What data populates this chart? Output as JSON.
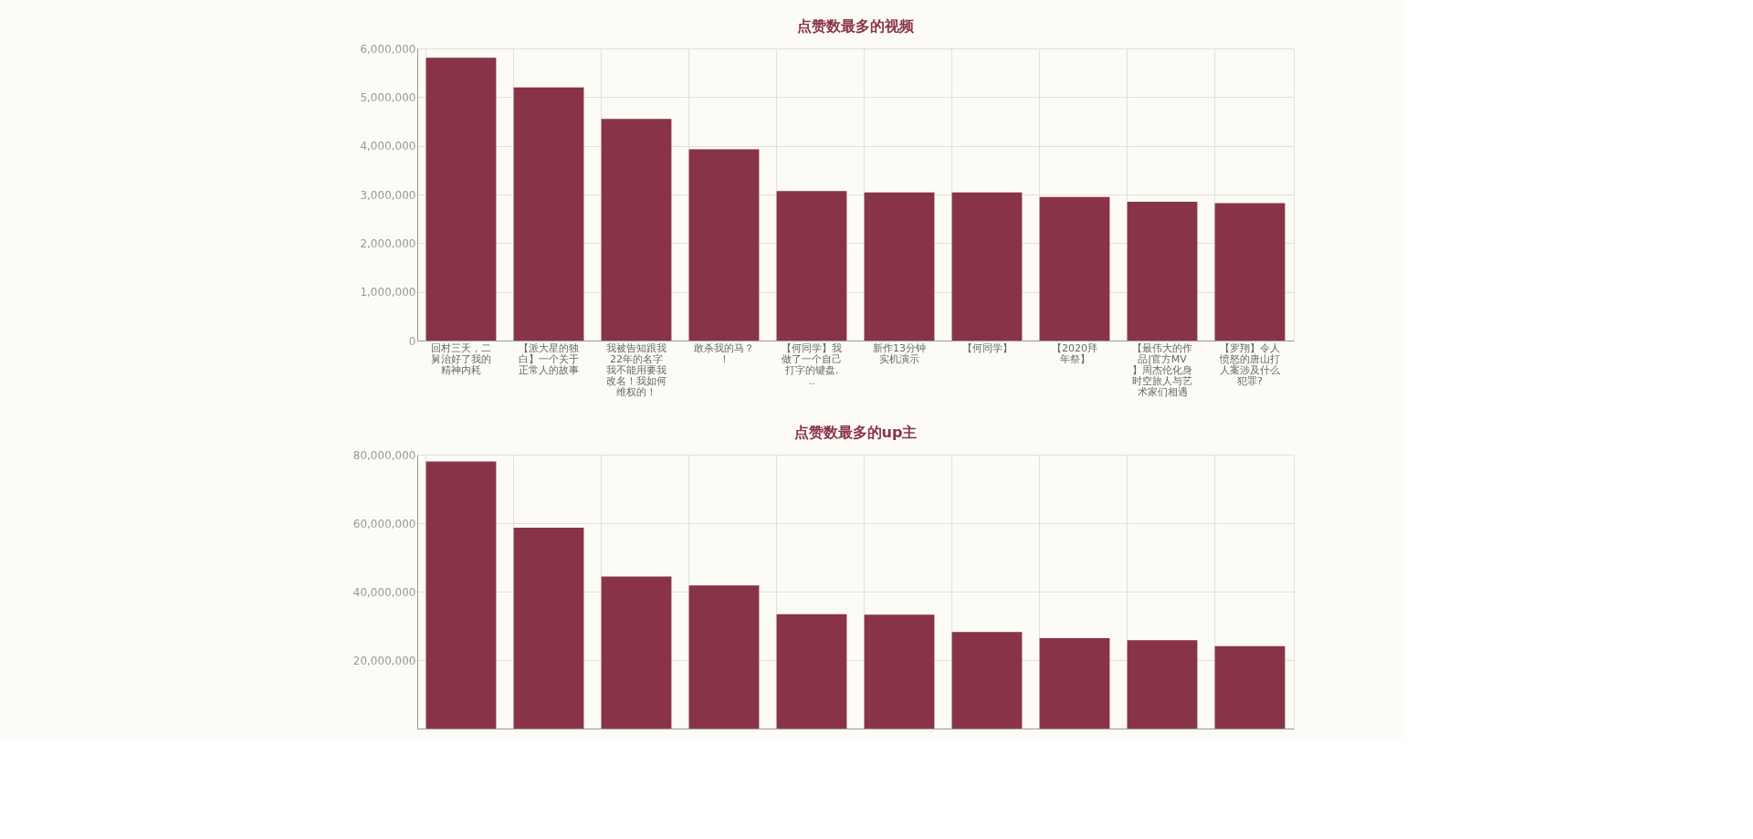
{
  "chart_data": [
    {
      "type": "bar",
      "title": "点赞数最多的视频",
      "categories": [
        "回村三天，二舅治好了我的精神内耗",
        "【派大星的独白】一个关于正常人的故事",
        "我被告知跟我22年的名字我不能用要我改名！我如何维权的！",
        "敢杀我的马？！",
        "【何同学】我做了一个自己打字的键盘...",
        "新作13分钟实机演示",
        "【何同学】",
        "【2020拜年祭】",
        "【最伟大的作品|官方MV】周杰伦化身时空旅人与艺术家们相遇",
        "【罗翔】令人愤怒的唐山打人案涉及什么犯罪?"
      ],
      "series": [
        {
          "color": "#893347",
          "values": [
            5810000,
            5200000,
            4550000,
            3930000,
            3070000,
            3040000,
            3040000,
            2950000,
            2850000,
            2820000
          ]
        }
      ],
      "ylim": [
        0,
        6000000
      ],
      "yticks": [
        0,
        {
          "value": 1000000,
          "label": "1,000,000"
        },
        {
          "value": 2000000,
          "label": "2,000,000"
        },
        {
          "value": 3000000,
          "label": "3,000,000"
        },
        {
          "value": 4000000,
          "label": "4,000,000"
        },
        {
          "value": 5000000,
          "label": "5,000,000"
        },
        {
          "value": 6000000,
          "label": "6,000,000"
        }
      ],
      "grid": true
    },
    {
      "type": "bar",
      "title": "点赞数最多的up主",
      "categories": [
        null,
        null,
        null,
        null,
        null,
        null,
        null,
        null,
        null,
        null
      ],
      "series": [
        {
          "color": "#893347",
          "values": [
            78000000,
            58700000,
            44400000,
            41800000,
            33400000,
            33300000,
            28200000,
            26400000,
            25800000,
            24100000
          ]
        }
      ],
      "ylim": [
        0,
        80000000
      ],
      "yticks": [
        {
          "value": 20000000,
          "label": "20,000,000"
        },
        {
          "value": 40000000,
          "label": "40,000,000"
        },
        {
          "value": 60000000,
          "label": "60,000,000"
        },
        {
          "value": 80000000,
          "label": "80,000,000"
        }
      ],
      "grid": true,
      "tick_labels": "y"
    }
  ]
}
